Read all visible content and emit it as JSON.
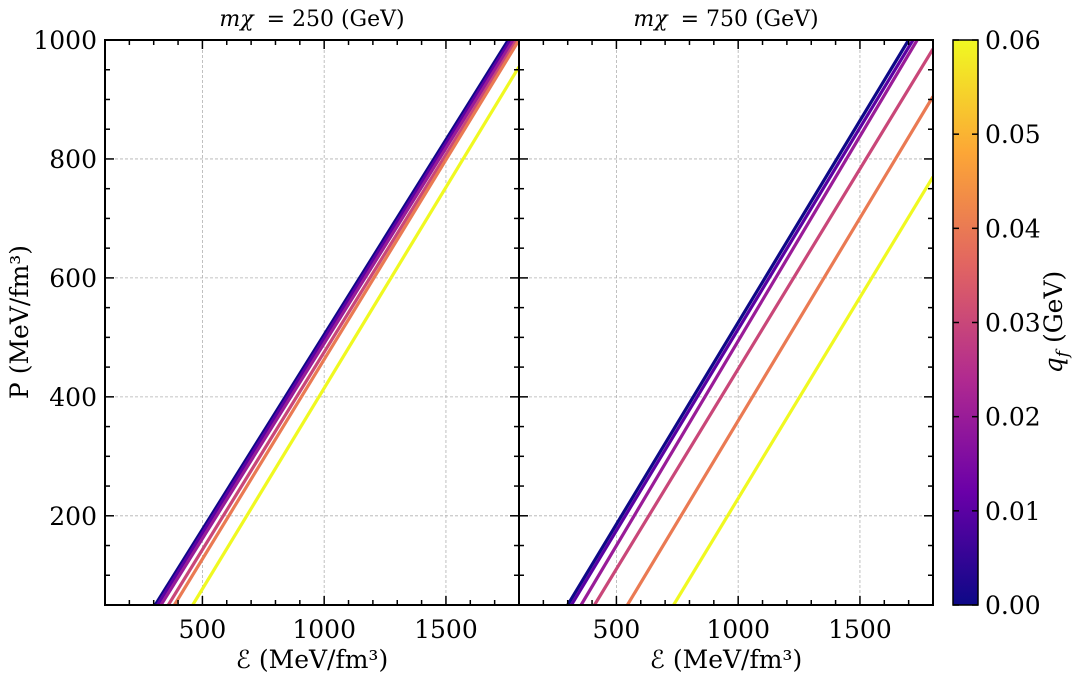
{
  "chart_data": [
    {
      "type": "line",
      "title": "m_χ = 250 (GeV)",
      "title_math": "mχ",
      "title_rest": "= 250 (GeV)",
      "xlabel": "ℰ (MeV/fm³)",
      "ylabel": "P (MeV/fm³)",
      "xlim": [
        100,
        1800
      ],
      "ylim": [
        50,
        1000
      ],
      "xticks": [
        500,
        1000,
        1500
      ],
      "yticks": [
        200,
        400,
        600,
        800,
        1000
      ],
      "series": [
        {
          "name": "q_f = 0.00",
          "qf": 0.0,
          "x": [
            306,
            1756
          ],
          "y": [
            50,
            1000
          ]
        },
        {
          "name": "q_f = 0.01",
          "qf": 0.01,
          "x": [
            315,
            1765
          ],
          "y": [
            50,
            1000
          ]
        },
        {
          "name": "q_f = 0.02",
          "qf": 0.02,
          "x": [
            330,
            1777
          ],
          "y": [
            50,
            1000
          ]
        },
        {
          "name": "q_f = 0.03",
          "qf": 0.03,
          "x": [
            360,
            1790
          ],
          "y": [
            50,
            1000
          ]
        },
        {
          "name": "q_f = 0.04",
          "qf": 0.04,
          "x": [
            385,
            1800
          ],
          "y": [
            50,
            1000
          ]
        },
        {
          "name": "q_f = 0.06",
          "qf": 0.06,
          "x": [
            460,
            1800
          ],
          "y": [
            50,
            955
          ]
        }
      ]
    },
    {
      "type": "line",
      "title": "m_χ = 750 (GeV)",
      "title_math": "mχ",
      "title_rest": "= 750 (GeV)",
      "xlabel": "ℰ (MeV/fm³)",
      "xlim": [
        100,
        1800
      ],
      "ylim": [
        50,
        1000
      ],
      "xticks": [
        500,
        1000,
        1500
      ],
      "yticks": [
        200,
        400,
        600,
        800,
        1000
      ],
      "series": [
        {
          "name": "q_f = 0.00",
          "qf": 0.0,
          "x": [
            300,
            1700
          ],
          "y": [
            50,
            1000
          ]
        },
        {
          "name": "q_f = 0.01",
          "qf": 0.01,
          "x": [
            315,
            1718
          ],
          "y": [
            50,
            1000
          ]
        },
        {
          "name": "q_f = 0.02",
          "qf": 0.02,
          "x": [
            355,
            1735
          ],
          "y": [
            50,
            1000
          ]
        },
        {
          "name": "q_f = 0.03",
          "qf": 0.03,
          "x": [
            410,
            1800
          ],
          "y": [
            50,
            985
          ]
        },
        {
          "name": "q_f = 0.04",
          "qf": 0.04,
          "x": [
            545,
            1800
          ],
          "y": [
            50,
            905
          ]
        },
        {
          "name": "q_f = 0.06",
          "qf": 0.06,
          "x": [
            735,
            1800
          ],
          "y": [
            50,
            770
          ]
        }
      ]
    }
  ],
  "colorbar": {
    "label": "q_f (GeV)",
    "label_math": "q",
    "label_sub": "f",
    "label_rest": " (GeV)",
    "min": 0.0,
    "max": 0.06,
    "ticks": [
      "0.00",
      "0.01",
      "0.02",
      "0.03",
      "0.04",
      "0.05",
      "0.06"
    ],
    "colormap": "plasma",
    "colormap_stops": [
      "#0d0887",
      "#6a00a8",
      "#b12a90",
      "#e16462",
      "#fca636",
      "#f0f921"
    ]
  }
}
